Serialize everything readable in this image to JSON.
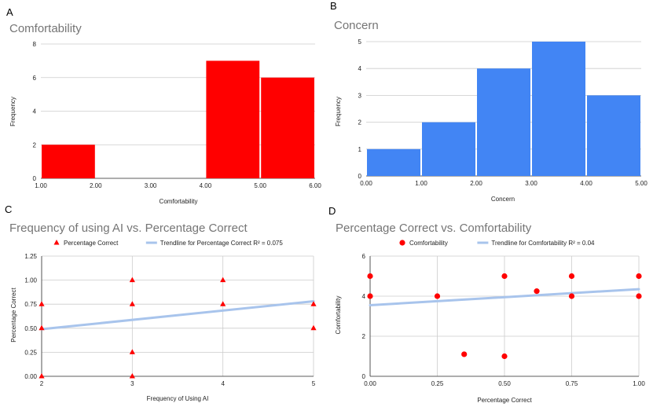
{
  "panels": [
    "A",
    "B",
    "C",
    "D"
  ],
  "chart_data": [
    {
      "id": "A",
      "type": "bar",
      "title": "Comfortability",
      "xlabel": "Comfortability",
      "ylabel": "Frequency",
      "bins": [
        {
          "x0": 1.0,
          "x1": 2.0,
          "value": 2
        },
        {
          "x0": 2.0,
          "x1": 3.0,
          "value": 0
        },
        {
          "x0": 3.0,
          "x1": 4.0,
          "value": 0
        },
        {
          "x0": 4.0,
          "x1": 5.0,
          "value": 7
        },
        {
          "x0": 5.0,
          "x1": 6.0,
          "value": 6
        }
      ],
      "xticks": [
        "1.00",
        "2.00",
        "3.00",
        "4.00",
        "5.00",
        "6.00"
      ],
      "yticks": [
        "0",
        "2",
        "4",
        "6",
        "8"
      ],
      "xlim": [
        1,
        6
      ],
      "ylim": [
        0,
        8
      ],
      "color": "#ff0000"
    },
    {
      "id": "B",
      "type": "bar",
      "title": "Concern",
      "xlabel": "Concern",
      "ylabel": "Frequency",
      "bins": [
        {
          "x0": 0.0,
          "x1": 1.0,
          "value": 1
        },
        {
          "x0": 1.0,
          "x1": 2.0,
          "value": 2
        },
        {
          "x0": 2.0,
          "x1": 3.0,
          "value": 4
        },
        {
          "x0": 3.0,
          "x1": 4.0,
          "value": 5
        },
        {
          "x0": 4.0,
          "x1": 5.0,
          "value": 3
        }
      ],
      "xticks": [
        "0.00",
        "1.00",
        "2.00",
        "3.00",
        "4.00",
        "5.00"
      ],
      "yticks": [
        "0",
        "1",
        "2",
        "3",
        "4",
        "5"
      ],
      "xlim": [
        0,
        5
      ],
      "ylim": [
        0,
        5
      ],
      "color": "#4285f4"
    },
    {
      "id": "C",
      "type": "scatter",
      "title": "Frequency of using AI vs. Percentage Correct",
      "xlabel": "Frequency of Using AI",
      "ylabel": "Percentage Correct",
      "marker": "triangle",
      "series_name": "Percentage Correct",
      "trendline_label": "Trendline for Percentage Correct R² = 0.075",
      "points": [
        {
          "x": 2,
          "y": 0.75
        },
        {
          "x": 2,
          "y": 0.5
        },
        {
          "x": 2,
          "y": 0.0
        },
        {
          "x": 3,
          "y": 1.0
        },
        {
          "x": 3,
          "y": 0.75
        },
        {
          "x": 3,
          "y": 0.25
        },
        {
          "x": 3,
          "y": 0.0
        },
        {
          "x": 4,
          "y": 1.0
        },
        {
          "x": 4,
          "y": 0.75
        },
        {
          "x": 5,
          "y": 0.75
        },
        {
          "x": 5,
          "y": 0.5
        }
      ],
      "trendline": {
        "x": [
          2,
          5
        ],
        "y": [
          0.49,
          0.78
        ]
      },
      "xticks": [
        "2",
        "3",
        "4",
        "5"
      ],
      "yticks": [
        "0.00",
        "0.25",
        "0.50",
        "0.75",
        "1.00",
        "1.25"
      ],
      "xlim": [
        2,
        5
      ],
      "ylim": [
        0,
        1.25
      ],
      "color": "#ff0000",
      "trend_color": "#a8c4ec"
    },
    {
      "id": "D",
      "type": "scatter",
      "title": "Percentage Correct vs. Comfortability",
      "xlabel": "Percentage Correct",
      "ylabel": "Comfortability",
      "marker": "circle",
      "series_name": "Comfortability",
      "trendline_label": "Trendline for Comfortability R² = 0.04",
      "points": [
        {
          "x": 0.0,
          "y": 5
        },
        {
          "x": 0.0,
          "y": 4
        },
        {
          "x": 0.25,
          "y": 4
        },
        {
          "x": 0.35,
          "y": 1.1
        },
        {
          "x": 0.5,
          "y": 5
        },
        {
          "x": 0.5,
          "y": 1.0
        },
        {
          "x": 0.62,
          "y": 4.25
        },
        {
          "x": 0.75,
          "y": 5
        },
        {
          "x": 0.75,
          "y": 4
        },
        {
          "x": 1.0,
          "y": 5
        },
        {
          "x": 1.0,
          "y": 4
        }
      ],
      "trendline": {
        "x": [
          0,
          1
        ],
        "y": [
          3.55,
          4.35
        ]
      },
      "xticks": [
        "0.00",
        "0.25",
        "0.50",
        "0.75",
        "1.00"
      ],
      "yticks": [
        "0",
        "2",
        "4",
        "6"
      ],
      "xlim": [
        0,
        1
      ],
      "ylim": [
        0,
        6
      ],
      "color": "#ff0000",
      "trend_color": "#a8c4ec"
    }
  ]
}
